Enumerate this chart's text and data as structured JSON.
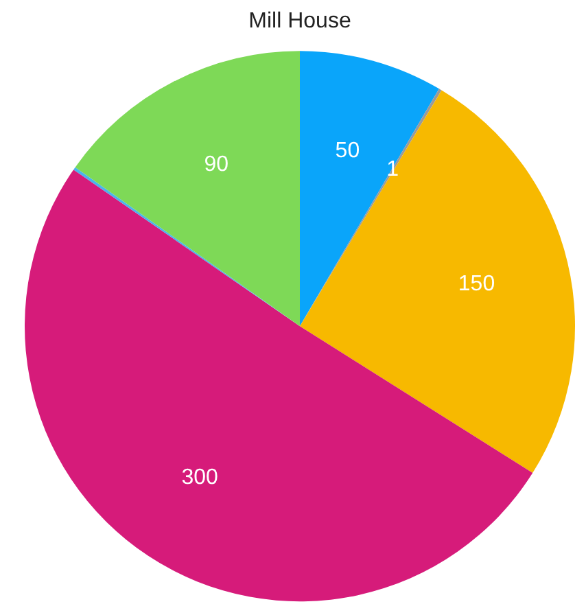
{
  "chart_data": {
    "type": "pie",
    "title": "Mill House",
    "categories": [
      null,
      null,
      null,
      null,
      null,
      null
    ],
    "values": [
      50,
      1,
      150,
      300,
      1,
      90
    ],
    "colors": [
      "#0aa5fa",
      "#9a9a9a",
      "#f7b900",
      "#d61b7a",
      "#4ab4ec",
      "#7ed957"
    ],
    "value_labels": [
      "50",
      "1",
      "150",
      "300",
      null,
      "90"
    ],
    "legend": false
  }
}
